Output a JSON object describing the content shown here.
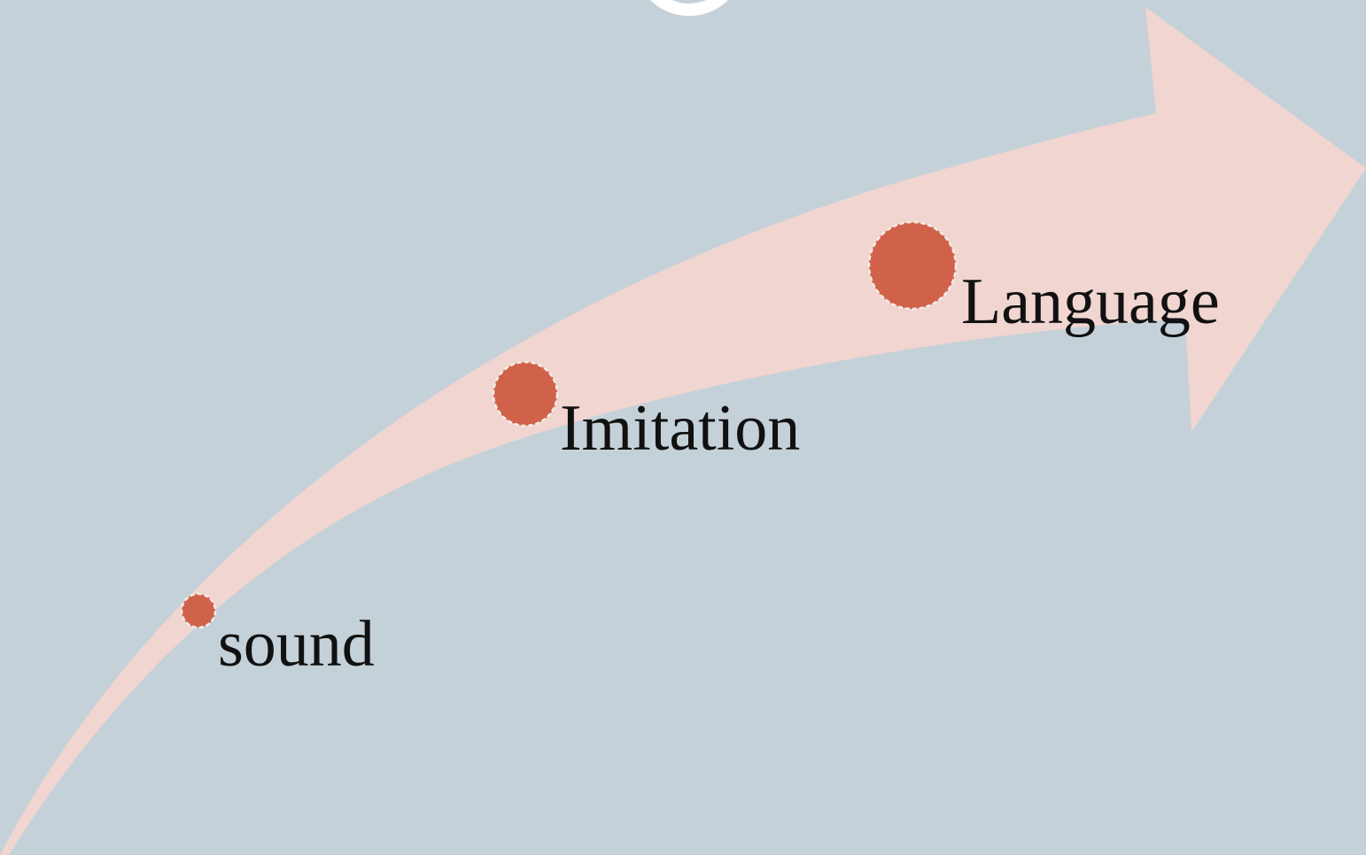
{
  "nodes": [
    {
      "label": "sound"
    },
    {
      "label": "Imitation"
    },
    {
      "label": "Language"
    }
  ]
}
